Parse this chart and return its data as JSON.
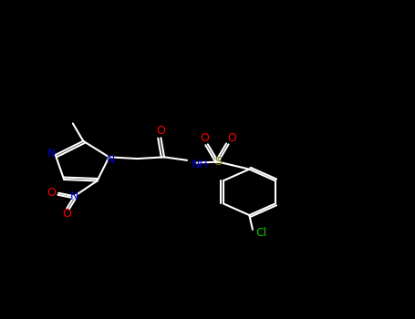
{
  "bg_color": "#000000",
  "fig_width": 4.55,
  "fig_height": 3.5,
  "dpi": 100,
  "colors": {
    "C": "#FFFFFF",
    "N": "#0000CC",
    "O": "#FF0000",
    "S": "#808000",
    "Cl": "#00CC00",
    "bond": "#FFFFFF"
  },
  "lw": 1.5,
  "font_size": 9
}
